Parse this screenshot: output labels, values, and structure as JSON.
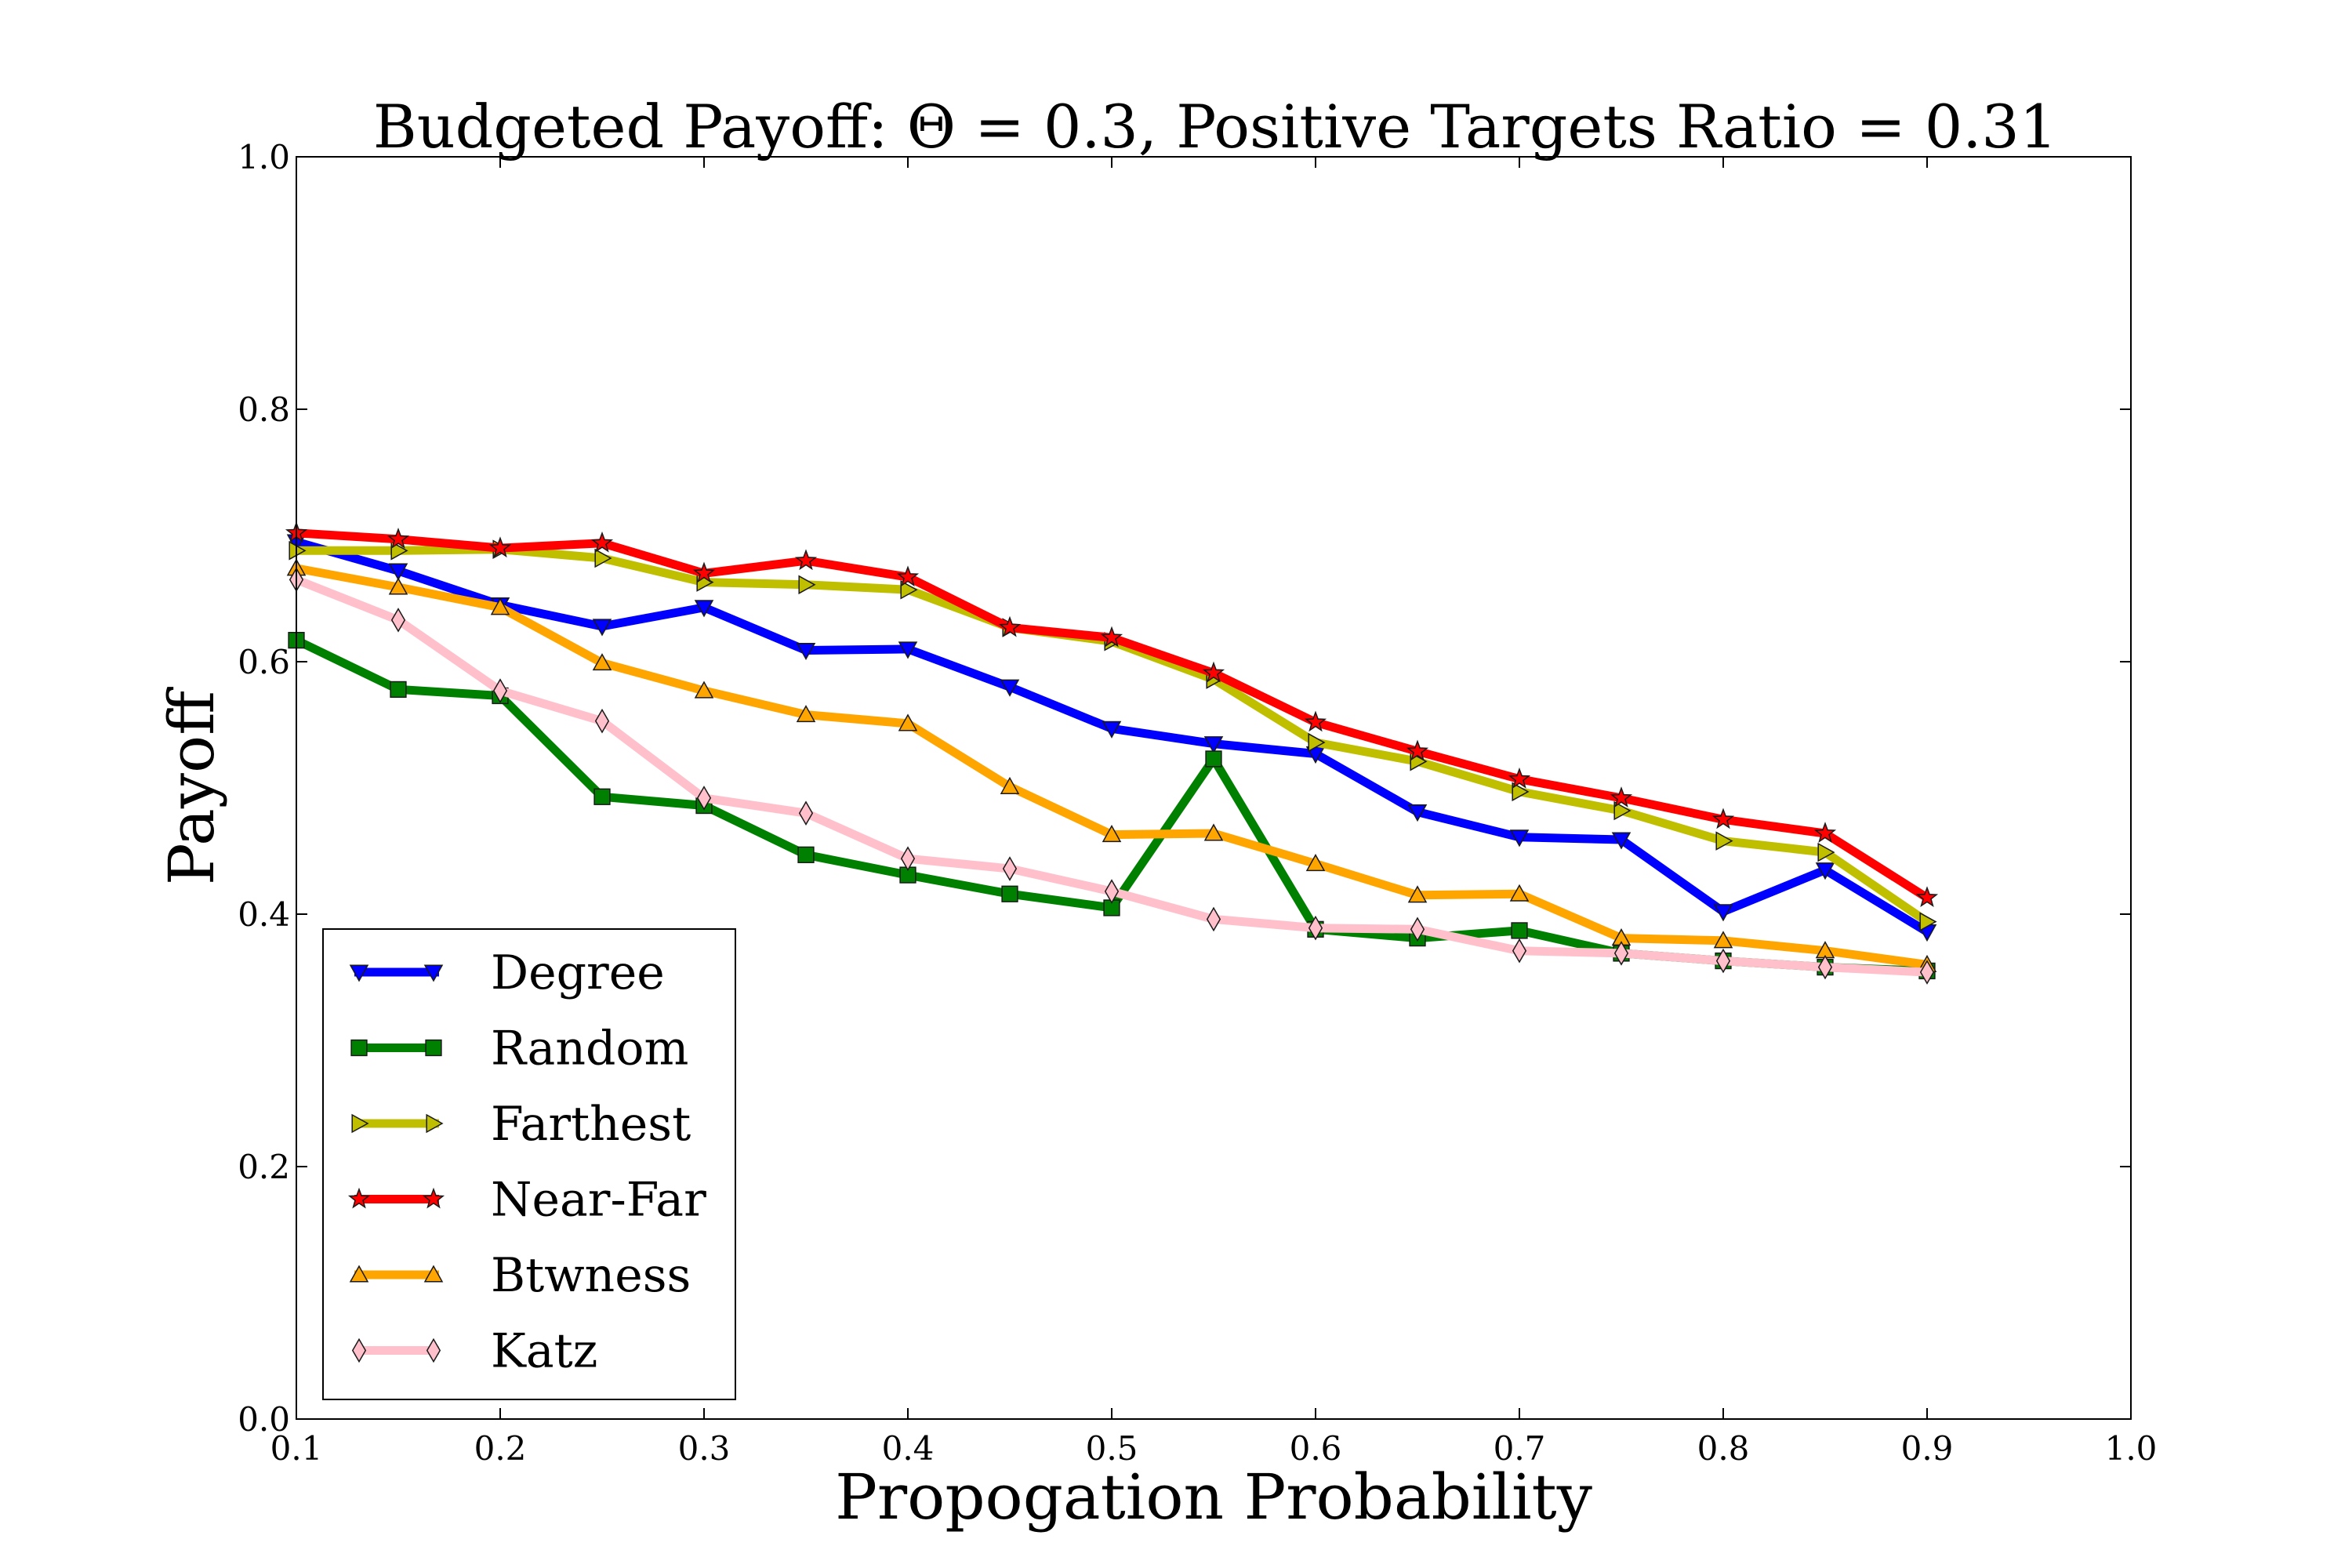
{
  "chart_data": {
    "type": "line",
    "title": "Budgeted Payoff: Θ = 0.3, Positive Targets Ratio = 0.31",
    "xlabel": "Propogation Probability",
    "ylabel": "Payoff",
    "xlim": [
      0.1,
      1.0
    ],
    "ylim": [
      0.0,
      1.0
    ],
    "xticks": [
      "0.1",
      "0.2",
      "0.3",
      "0.4",
      "0.5",
      "0.6",
      "0.7",
      "0.8",
      "0.9",
      "1.0"
    ],
    "yticks": [
      "0.0",
      "0.2",
      "0.4",
      "0.6",
      "0.8",
      "1.0"
    ],
    "grid": false,
    "legend_position": "lower-left",
    "x": [
      0.1,
      0.15,
      0.2,
      0.25,
      0.3,
      0.35,
      0.4,
      0.45,
      0.5,
      0.55,
      0.6,
      0.65,
      0.7,
      0.75,
      0.8,
      0.85,
      0.9
    ],
    "series": [
      {
        "name": "Degree",
        "color": "#0000ff",
        "marker": "triangle-down",
        "values": [
          0.695,
          0.672,
          0.645,
          0.628,
          0.643,
          0.609,
          0.61,
          0.58,
          0.547,
          0.535,
          0.527,
          0.481,
          0.461,
          0.459,
          0.402,
          0.435,
          0.386
        ]
      },
      {
        "name": "Random",
        "color": "#008000",
        "marker": "square",
        "values": [
          0.617,
          0.578,
          0.573,
          0.493,
          0.486,
          0.447,
          0.431,
          0.416,
          0.405,
          0.523,
          0.388,
          0.381,
          0.387,
          0.369,
          0.363,
          0.358,
          0.355
        ]
      },
      {
        "name": "Farthest",
        "color": "#bfbf00",
        "marker": "triangle-right",
        "values": [
          0.688,
          0.688,
          0.689,
          0.682,
          0.663,
          0.661,
          0.657,
          0.627,
          0.616,
          0.586,
          0.536,
          0.521,
          0.497,
          0.482,
          0.458,
          0.449,
          0.394
        ]
      },
      {
        "name": "Near-Far",
        "color": "#ff0000",
        "marker": "star",
        "values": [
          0.702,
          0.697,
          0.69,
          0.694,
          0.67,
          0.68,
          0.667,
          0.627,
          0.619,
          0.591,
          0.552,
          0.529,
          0.507,
          0.492,
          0.475,
          0.464,
          0.413
        ]
      },
      {
        "name": "Btwness",
        "color": "#ffa500",
        "marker": "triangle-up",
        "values": [
          0.674,
          0.659,
          0.643,
          0.599,
          0.577,
          0.558,
          0.551,
          0.501,
          0.463,
          0.464,
          0.44,
          0.415,
          0.416,
          0.381,
          0.379,
          0.371,
          0.36
        ]
      },
      {
        "name": "Katz",
        "color": "#ffc0cb",
        "marker": "diamond",
        "values": [
          0.665,
          0.633,
          0.577,
          0.553,
          0.492,
          0.48,
          0.444,
          0.436,
          0.418,
          0.396,
          0.389,
          0.388,
          0.371,
          0.369,
          0.363,
          0.358,
          0.354
        ]
      }
    ]
  }
}
